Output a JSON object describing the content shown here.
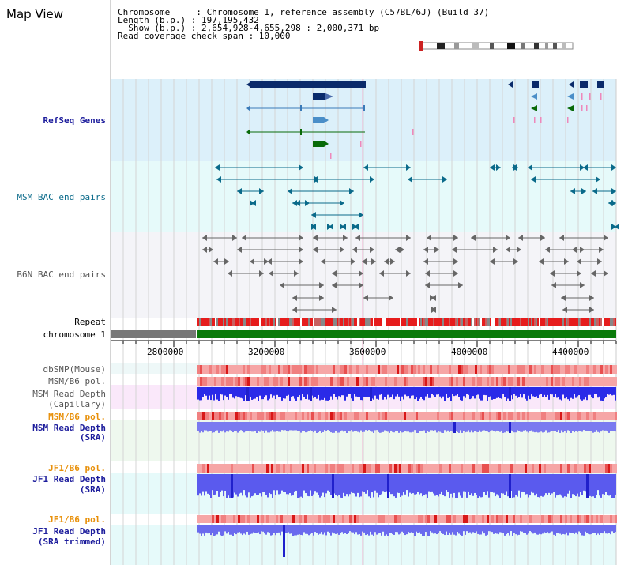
{
  "page_title": "Map View",
  "info": {
    "chromosome": "Chromosome     : Chromosome 1, reference assembly (C57BL/6J) (Build 37)",
    "length": "Length (b.p.) : 197,195,432",
    "show": "  Show (b.p.) : 2,654,928-4,655,298 : 2,000,371 bp",
    "coverage": "Read coverage check span : 10,000"
  },
  "tracks": {
    "refseq": "RefSeq Genes",
    "msm_bac": "MSM BAC end pairs",
    "b6n_bac": "B6N BAC end pairs",
    "repeat": "Repeat",
    "chromosome": "chromosome 1",
    "dbsnp": "dbSNP(Mouse)",
    "msm_b6_pol_1": "MSM/B6 pol.",
    "msm_depth_cap_1": "MSM Read Depth",
    "msm_depth_cap_2": "(Capillary)",
    "msm_b6_pol_2": "MSM/B6 pol.",
    "msm_depth_sra_1": "MSM Read Depth",
    "msm_depth_sra_2": "(SRA)",
    "jf1_b6_pol_1": "JF1/B6 pol.",
    "jf1_depth_sra_1": "JF1 Read Depth",
    "jf1_depth_sra_2": "(SRA)",
    "jf1_b6_pol_2": "JF1/B6 pol.",
    "jf1_depth_trim_1": "JF1 Read Depth",
    "jf1_depth_trim_2": "(SRA trimmed)"
  },
  "axis_ticks": [
    "2800000",
    "3200000",
    "3600000",
    "4000000",
    "4400000"
  ],
  "colors": {
    "refseq_bg": "#dcf0fa",
    "msm_bac_bg": "#e6fafa",
    "b6n_bac_bg": "#f4f4f8",
    "gene_dark": "#0a2a6a",
    "gene_mid": "#4a8ec8",
    "gene_green": "#086a08",
    "bac_teal": "#0a6a8a",
    "bac_gray": "#666666",
    "chrom_green": "#0a7a0a",
    "depth_blue": "#3a3aee",
    "pol_red": "#f08080"
  }
}
